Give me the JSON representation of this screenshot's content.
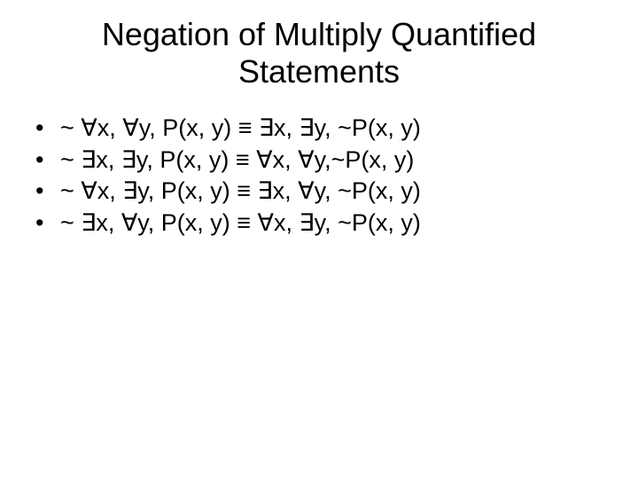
{
  "slide": {
    "background_color": "#ffffff",
    "text_color": "#000000",
    "font_family": "Arial",
    "title": {
      "text": "Negation of Multiply Quantified Statements",
      "fontsize": 36,
      "align": "center",
      "weight": "normal"
    },
    "bullets": {
      "fontsize": 27,
      "marker": "•",
      "items": [
        "~ ∀x, ∀y, P(x, y) ≡ ∃x, ∃y, ~P(x, y)",
        "~ ∃x, ∃y,  P(x, y) ≡ ∀x, ∀y,~P(x, y)",
        "~ ∀x, ∃y, P(x, y) ≡ ∃x, ∀y, ~P(x, y)",
        "~ ∃x, ∀y, P(x, y) ≡ ∀x, ∃y, ~P(x, y)"
      ]
    }
  }
}
